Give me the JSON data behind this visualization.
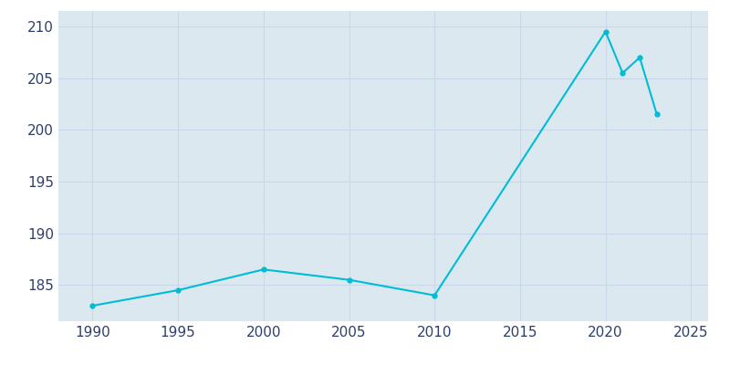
{
  "years": [
    1990,
    1995,
    2000,
    2005,
    2010,
    2020,
    2021,
    2022,
    2023
  ],
  "population": [
    183,
    184.5,
    186.5,
    185.5,
    184,
    209.5,
    205.5,
    207,
    201.5
  ],
  "line_color": "#00bcd4",
  "ax_bg_color": "#dce8f0",
  "fig_bg_color": "#ffffff",
  "grid_color": "#c8d8e8",
  "text_color": "#2e3f6e",
  "xlim": [
    1988,
    2026
  ],
  "ylim": [
    181.5,
    211.5
  ],
  "xticks": [
    1990,
    1995,
    2000,
    2005,
    2010,
    2015,
    2020,
    2025
  ],
  "yticks": [
    185,
    190,
    195,
    200,
    205,
    210
  ],
  "linewidth": 1.5,
  "markersize": 3.5
}
